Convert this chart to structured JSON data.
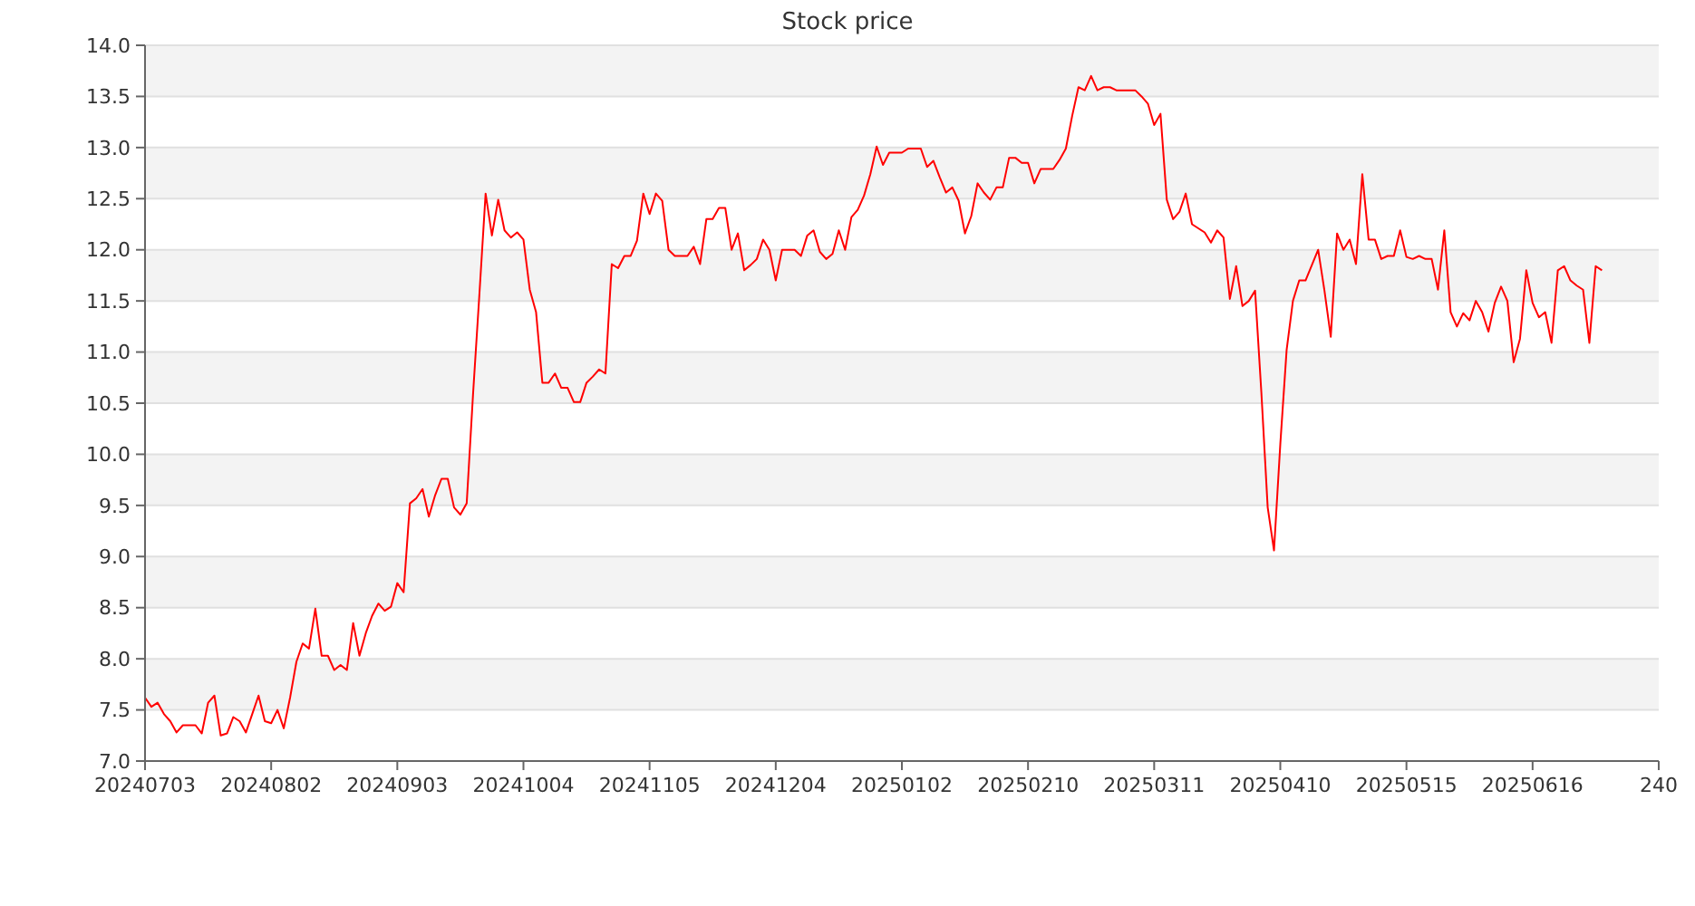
{
  "chart_data": {
    "type": "line",
    "title": "Stock price",
    "categories": [
      "20240703",
      null,
      null,
      null,
      null,
      null,
      null,
      null,
      null,
      null,
      null,
      null,
      null,
      null,
      null,
      null,
      null,
      null,
      null,
      null,
      "20240802",
      null,
      null,
      null,
      null,
      null,
      null,
      null,
      null,
      null,
      null,
      null,
      null,
      null,
      null,
      null,
      null,
      null,
      null,
      null,
      "20240903",
      null,
      null,
      null,
      null,
      null,
      null,
      null,
      null,
      null,
      null,
      null,
      null,
      null,
      null,
      null,
      null,
      null,
      null,
      null,
      "20241004",
      null,
      null,
      null,
      null,
      null,
      null,
      null,
      null,
      null,
      null,
      null,
      null,
      null,
      null,
      null,
      null,
      null,
      null,
      null,
      "20241105",
      null,
      null,
      null,
      null,
      null,
      null,
      null,
      null,
      null,
      null,
      null,
      null,
      null,
      null,
      null,
      null,
      null,
      null,
      null,
      "20241204",
      null,
      null,
      null,
      null,
      null,
      null,
      null,
      null,
      null,
      null,
      null,
      null,
      null,
      null,
      null,
      null,
      null,
      null,
      null,
      "20250102",
      null,
      null,
      null,
      null,
      null,
      null,
      null,
      null,
      null,
      null,
      null,
      null,
      null,
      null,
      null,
      null,
      null,
      null,
      null,
      "20250210",
      null,
      null,
      null,
      null,
      null,
      null,
      null,
      null,
      null,
      null,
      null,
      null,
      null,
      null,
      null,
      null,
      null,
      null,
      null,
      "20250311",
      null,
      null,
      null,
      null,
      null,
      null,
      null,
      null,
      null,
      null,
      null,
      null,
      null,
      null,
      null,
      null,
      null,
      null,
      null,
      "20250410",
      null,
      null,
      null,
      null,
      null,
      null,
      null,
      null,
      null,
      null,
      null,
      null,
      null,
      null,
      null,
      null,
      null,
      null,
      null,
      "20250515",
      null,
      null,
      null,
      null,
      null,
      null,
      null,
      null,
      null,
      null,
      null,
      null,
      null,
      null,
      null,
      null,
      null,
      null,
      null,
      "20250616",
      null,
      null,
      null,
      null,
      null,
      null,
      null,
      null,
      null,
      null,
      null,
      null,
      null,
      null,
      null,
      null,
      null,
      null,
      null,
      "240"
    ],
    "ylim": [
      7,
      14
    ],
    "yticks": [
      {
        "value": 7,
        "label": "7.0"
      },
      {
        "value": 7.5,
        "label": "7.5"
      },
      {
        "value": 8,
        "label": "8.0"
      },
      {
        "value": 8.5,
        "label": "8.5"
      },
      {
        "value": 9,
        "label": "9.0"
      },
      {
        "value": 9.5,
        "label": "9.5"
      },
      {
        "value": 10,
        "label": "10.0"
      },
      {
        "value": 10.5,
        "label": "10.5"
      },
      {
        "value": 11,
        "label": "11.0"
      },
      {
        "value": 11.5,
        "label": "11.5"
      },
      {
        "value": 12,
        "label": "12.0"
      },
      {
        "value": 12.5,
        "label": "12.5"
      },
      {
        "value": 13,
        "label": "13.0"
      },
      {
        "value": 13.5,
        "label": "13.5"
      },
      {
        "value": 14,
        "label": "14.0"
      }
    ],
    "grid": "y",
    "marker": "none",
    "line_style": "solid",
    "series": [
      {
        "color": "#ff0000",
        "values": [
          7.62,
          7.53,
          7.57,
          7.46,
          7.39,
          7.28,
          7.35,
          7.35,
          7.35,
          7.27,
          7.57,
          7.64,
          7.25,
          7.27,
          7.43,
          7.39,
          7.28,
          7.46,
          7.64,
          7.39,
          7.37,
          7.5,
          7.32,
          7.62,
          7.97,
          8.15,
          8.1,
          8.49,
          8.03,
          8.03,
          7.89,
          7.94,
          7.89,
          8.35,
          8.03,
          8.25,
          8.42,
          8.54,
          8.47,
          8.51,
          8.74,
          8.65,
          9.52,
          9.57,
          9.66,
          9.39,
          9.6,
          9.76,
          9.76,
          9.48,
          9.41,
          9.52,
          10.58,
          11.55,
          12.55,
          12.14,
          12.49,
          12.19,
          12.12,
          12.17,
          12.1,
          11.61,
          11.39,
          10.7,
          10.7,
          10.79,
          10.65,
          10.65,
          10.51,
          10.51,
          10.7,
          10.76,
          10.83,
          10.79,
          11.86,
          11.82,
          11.94,
          11.94,
          12.09,
          12.55,
          12.35,
          12.55,
          12.48,
          12,
          11.94,
          11.94,
          11.94,
          12.03,
          11.86,
          12.3,
          12.3,
          12.41,
          12.41,
          12,
          12.16,
          11.8,
          11.85,
          11.91,
          12.1,
          12,
          11.7,
          12,
          12,
          12,
          11.94,
          12.14,
          12.19,
          11.98,
          11.91,
          11.96,
          12.19,
          12,
          12.32,
          12.39,
          12.53,
          12.74,
          13.01,
          12.83,
          12.95,
          12.95,
          12.95,
          12.99,
          12.99,
          12.99,
          12.81,
          12.87,
          12.71,
          12.56,
          12.61,
          12.48,
          12.16,
          12.33,
          12.65,
          12.56,
          12.49,
          12.61,
          12.61,
          12.9,
          12.9,
          12.85,
          12.85,
          12.65,
          12.79,
          12.79,
          12.79,
          12.88,
          12.99,
          13.31,
          13.59,
          13.56,
          13.7,
          13.56,
          13.59,
          13.59,
          13.56,
          13.56,
          13.56,
          13.56,
          13.5,
          13.43,
          13.22,
          13.33,
          12.49,
          12.3,
          12.37,
          12.55,
          12.25,
          12.21,
          12.17,
          12.07,
          12.19,
          12.12,
          11.52,
          11.84,
          11.45,
          11.5,
          11.6,
          10.6,
          9.48,
          9.06,
          10.1,
          11.02,
          11.5,
          11.7,
          11.7,
          11.85,
          12,
          11.6,
          11.15,
          12.16,
          12,
          12.1,
          11.86,
          12.74,
          12.1,
          12.1,
          11.91,
          11.94,
          11.94,
          12.19,
          11.93,
          11.91,
          11.94,
          11.91,
          11.91,
          11.61,
          12.19,
          11.39,
          11.25,
          11.38,
          11.31,
          11.5,
          11.39,
          11.2,
          11.48,
          11.64,
          11.5,
          10.9,
          11.13,
          11.8,
          11.48,
          11.34,
          11.39,
          11.09,
          11.8,
          11.84,
          11.7,
          11.65,
          11.61,
          11.09,
          11.84,
          11.8,
          null,
          null,
          null,
          null,
          null,
          null,
          null,
          null,
          null
        ]
      }
    ]
  }
}
